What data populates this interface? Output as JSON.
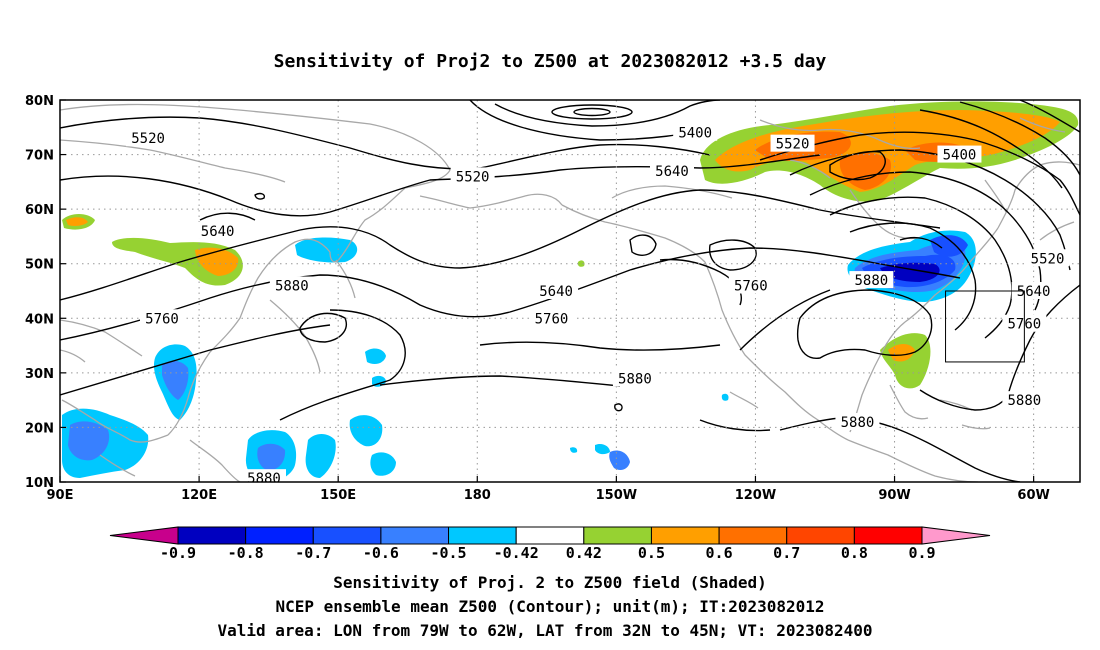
{
  "title": "Sensitivity of Proj2 to Z500 at 2023082012 +3.5 day",
  "map": {
    "lon_range": [
      90,
      310
    ],
    "lat_range": [
      10,
      80
    ],
    "x_ticks": [
      {
        "lon": 90,
        "label": "90E"
      },
      {
        "lon": 120,
        "label": "120E"
      },
      {
        "lon": 150,
        "label": "150E"
      },
      {
        "lon": 180,
        "label": "180"
      },
      {
        "lon": 210,
        "label": "150W"
      },
      {
        "lon": 240,
        "label": "120W"
      },
      {
        "lon": 270,
        "label": "90W"
      },
      {
        "lon": 300,
        "label": "60W"
      }
    ],
    "y_ticks": [
      {
        "lat": 10,
        "label": "10N"
      },
      {
        "lat": 20,
        "label": "20N"
      },
      {
        "lat": 30,
        "label": "30N"
      },
      {
        "lat": 40,
        "label": "40N"
      },
      {
        "lat": 50,
        "label": "50N"
      },
      {
        "lat": 60,
        "label": "60N"
      },
      {
        "lat": 70,
        "label": "70N"
      },
      {
        "lat": 80,
        "label": "80N"
      }
    ],
    "grid": "dotted",
    "valid_box": {
      "lon_min": 281,
      "lon_max": 298,
      "lat_min": 32,
      "lat_max": 45
    },
    "contour_labels": [
      {
        "text": "5520",
        "lon": 109,
        "lat": 73
      },
      {
        "text": "5400",
        "lon": 227,
        "lat": 74
      },
      {
        "text": "5520",
        "lon": 248,
        "lat": 72
      },
      {
        "text": "5400",
        "lon": 284,
        "lat": 70
      },
      {
        "text": "5520",
        "lon": 179,
        "lat": 66
      },
      {
        "text": "5640",
        "lon": 222,
        "lat": 67
      },
      {
        "text": "5640",
        "lon": 124,
        "lat": 56
      },
      {
        "text": "5880",
        "lon": 140,
        "lat": 46
      },
      {
        "text": "5760",
        "lon": 112,
        "lat": 40
      },
      {
        "text": "5640",
        "lon": 197,
        "lat": 45
      },
      {
        "text": "5760",
        "lon": 196,
        "lat": 40
      },
      {
        "text": "5760",
        "lon": 239,
        "lat": 46
      },
      {
        "text": "5880",
        "lon": 265,
        "lat": 47
      },
      {
        "text": "5520",
        "lon": 303,
        "lat": 51
      },
      {
        "text": "5640",
        "lon": 300,
        "lat": 45
      },
      {
        "text": "5760",
        "lon": 298,
        "lat": 39
      },
      {
        "text": "5880",
        "lon": 214,
        "lat": 29
      },
      {
        "text": "5880",
        "lon": 262,
        "lat": 21
      },
      {
        "text": "5880",
        "lon": 298,
        "lat": 25
      },
      {
        "text": "5880",
        "lon": 134,
        "lat": 10.7
      }
    ]
  },
  "colorbar": {
    "labels": [
      "-0.9",
      "-0.8",
      "-0.7",
      "-0.6",
      "-0.5",
      "-0.42",
      "0.42",
      "0.5",
      "0.6",
      "0.7",
      "0.8",
      "0.9"
    ],
    "colors": [
      "#0000c0",
      "#0020ff",
      "#1850ff",
      "#3880ff",
      "#00c8ff",
      "#ffffff",
      "#96d232",
      "#ff9f00",
      "#ff7000",
      "#ff4500",
      "#ff0000"
    ],
    "low_color": "#c8008c",
    "high_color": "#ff99cc"
  },
  "captions": [
    "Sensitivity of Proj. 2 to Z500 field (Shaded)",
    "NCEP ensemble mean Z500 (Contour); unit(m); IT:2023082012",
    "Valid area: LON from 79W to 62W, LAT from 32N to 45N; VT: 2023082400"
  ]
}
